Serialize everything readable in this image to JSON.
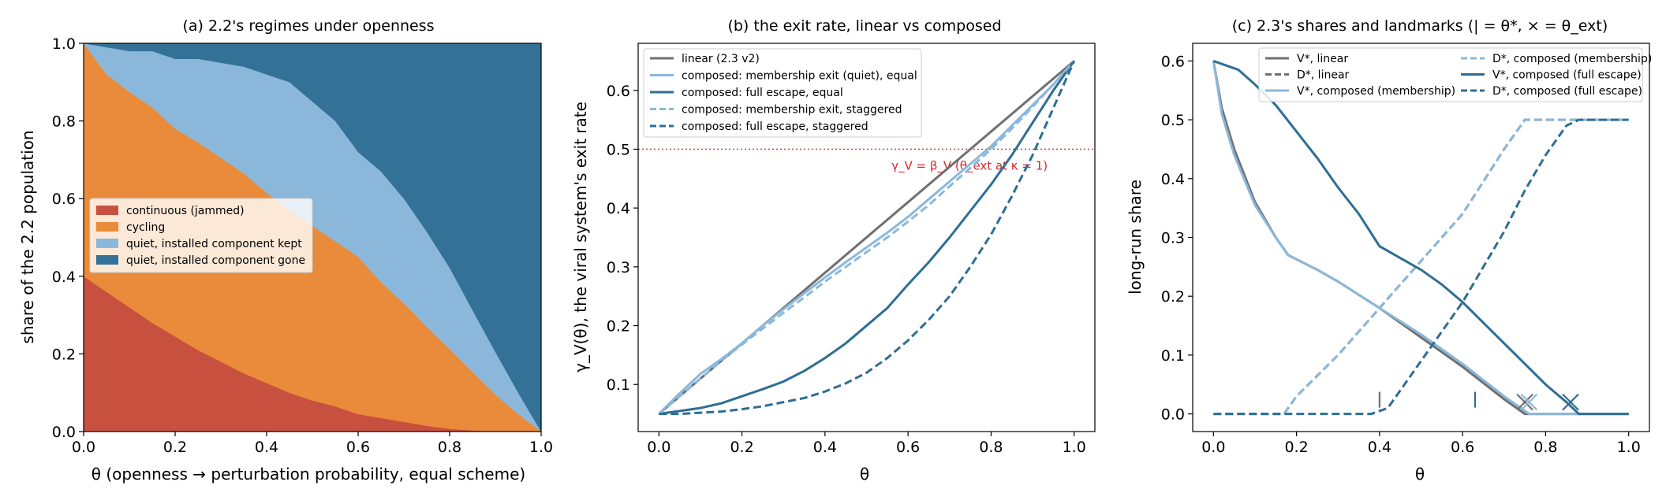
{
  "colors": {
    "red": "#c8503f",
    "orange": "#e98b3a",
    "light_blue": "#8bb8da",
    "dark_blue": "#347197",
    "teal": "#2e6e94",
    "gray": "#707070",
    "ref_red": "#d62728"
  },
  "chart_data": [
    {
      "type": "area",
      "title": "(a) 2.2's regimes under openness",
      "xlabel": "θ (openness → perturbation probability, equal scheme)",
      "ylabel": "share of the 2.2 population",
      "xlim": [
        0.0,
        1.0
      ],
      "ylim": [
        0.0,
        1.0
      ],
      "x_ticks": [
        "0.0",
        "0.2",
        "0.4",
        "0.6",
        "0.8",
        "1.0"
      ],
      "y_ticks": [
        "0.0",
        "0.2",
        "0.4",
        "0.6",
        "0.8",
        "1.0"
      ],
      "legend_position": "center-left",
      "stacked": true,
      "x": [
        0.0,
        0.05,
        0.1,
        0.15,
        0.2,
        0.25,
        0.3,
        0.35,
        0.4,
        0.45,
        0.5,
        0.55,
        0.6,
        0.65,
        0.7,
        0.75,
        0.8,
        0.85,
        0.9,
        0.95,
        1.0
      ],
      "series": [
        {
          "name": "continuous (jammed)",
          "color": "#c8503f",
          "values": [
            0.4,
            0.36,
            0.32,
            0.28,
            0.245,
            0.21,
            0.18,
            0.15,
            0.125,
            0.1,
            0.08,
            0.065,
            0.045,
            0.035,
            0.025,
            0.015,
            0.007,
            0.003,
            0.0,
            0.0,
            0.0
          ]
        },
        {
          "name": "cycling",
          "color": "#e98b3a",
          "values": [
            0.6,
            0.56,
            0.555,
            0.555,
            0.535,
            0.535,
            0.525,
            0.515,
            0.49,
            0.47,
            0.45,
            0.425,
            0.405,
            0.35,
            0.305,
            0.255,
            0.205,
            0.15,
            0.095,
            0.045,
            0.0
          ]
        },
        {
          "name": "quiet, installed component kept",
          "color": "#8bb8da",
          "values": [
            0.0,
            0.07,
            0.105,
            0.145,
            0.18,
            0.215,
            0.245,
            0.275,
            0.305,
            0.33,
            0.32,
            0.31,
            0.27,
            0.285,
            0.27,
            0.245,
            0.21,
            0.16,
            0.11,
            0.055,
            0.0
          ]
        },
        {
          "name": "quiet, installed component gone",
          "color": "#347197",
          "values": [
            0.0,
            0.01,
            0.02,
            0.02,
            0.04,
            0.04,
            0.05,
            0.06,
            0.08,
            0.1,
            0.15,
            0.2,
            0.28,
            0.33,
            0.4,
            0.485,
            0.578,
            0.687,
            0.795,
            0.9,
            1.0
          ]
        }
      ]
    },
    {
      "type": "line",
      "title": "(b) the exit rate, linear vs composed",
      "xlabel": "θ",
      "ylabel": "γ_V(θ), the viral system's exit rate",
      "xlim": [
        -0.05,
        1.05
      ],
      "ylim": [
        0.02,
        0.68
      ],
      "x_ticks": [
        "0.0",
        "0.2",
        "0.4",
        "0.6",
        "0.8",
        "1.0"
      ],
      "y_ticks": [
        "0.1",
        "0.2",
        "0.3",
        "0.4",
        "0.5",
        "0.6"
      ],
      "legend_position": "upper-left",
      "reference_line": {
        "y": 0.5,
        "label": "γ_V = β_V  (θ_ext at κ = 1)"
      },
      "series": [
        {
          "name": "linear (2.3 v2)",
          "color": "#707070",
          "dash": "solid",
          "x": [
            0.0,
            1.0
          ],
          "values": [
            0.05,
            0.65
          ]
        },
        {
          "name": "composed: membership exit (quiet), equal",
          "color": "#8bb8da",
          "dash": "solid",
          "x": [
            0.0,
            0.05,
            0.1,
            0.15,
            0.2,
            0.25,
            0.3,
            0.35,
            0.4,
            0.45,
            0.5,
            0.55,
            0.6,
            0.65,
            0.7,
            0.75,
            0.8,
            0.85,
            0.9,
            0.95,
            1.0
          ],
          "values": [
            0.05,
            0.085,
            0.118,
            0.143,
            0.17,
            0.2,
            0.228,
            0.255,
            0.282,
            0.308,
            0.333,
            0.358,
            0.385,
            0.415,
            0.445,
            0.475,
            0.505,
            0.54,
            0.575,
            0.61,
            0.65
          ]
        },
        {
          "name": "composed: full escape, equal",
          "color": "#2e6e94",
          "dash": "solid",
          "x": [
            0.0,
            0.05,
            0.1,
            0.15,
            0.2,
            0.25,
            0.3,
            0.35,
            0.4,
            0.45,
            0.5,
            0.55,
            0.6,
            0.65,
            0.7,
            0.75,
            0.8,
            0.85,
            0.9,
            0.95,
            1.0
          ],
          "values": [
            0.05,
            0.055,
            0.06,
            0.068,
            0.08,
            0.092,
            0.105,
            0.123,
            0.145,
            0.17,
            0.2,
            0.23,
            0.27,
            0.308,
            0.35,
            0.395,
            0.44,
            0.49,
            0.545,
            0.6,
            0.65
          ]
        },
        {
          "name": "composed: membership exit, staggered",
          "color": "#8bb8da",
          "dash": "dashed",
          "x": [
            0.0,
            0.05,
            0.1,
            0.15,
            0.2,
            0.25,
            0.3,
            0.35,
            0.4,
            0.45,
            0.5,
            0.55,
            0.6,
            0.65,
            0.7,
            0.75,
            0.8,
            0.85,
            0.9,
            0.95,
            1.0
          ],
          "values": [
            0.05,
            0.08,
            0.11,
            0.14,
            0.168,
            0.195,
            0.222,
            0.248,
            0.275,
            0.3,
            0.325,
            0.35,
            0.377,
            0.405,
            0.437,
            0.468,
            0.5,
            0.535,
            0.572,
            0.61,
            0.65
          ]
        },
        {
          "name": "composed: full escape, staggered",
          "color": "#2e6e94",
          "dash": "dashed",
          "x": [
            0.0,
            0.05,
            0.1,
            0.15,
            0.2,
            0.25,
            0.3,
            0.35,
            0.4,
            0.45,
            0.5,
            0.55,
            0.6,
            0.65,
            0.7,
            0.75,
            0.8,
            0.85,
            0.9,
            0.95,
            1.0
          ],
          "values": [
            0.05,
            0.05,
            0.052,
            0.054,
            0.058,
            0.063,
            0.07,
            0.077,
            0.088,
            0.102,
            0.12,
            0.145,
            0.175,
            0.21,
            0.25,
            0.3,
            0.355,
            0.42,
            0.49,
            0.57,
            0.65
          ]
        }
      ]
    },
    {
      "type": "line",
      "title": "(c) 2.3's shares and landmarks (| = θ*, × = θ_ext)",
      "xlabel": "θ",
      "ylabel": "long-run share",
      "xlim": [
        -0.05,
        1.05
      ],
      "ylim": [
        -0.03,
        0.63
      ],
      "x_ticks": [
        "0.0",
        "0.2",
        "0.4",
        "0.6",
        "0.8",
        "1.0"
      ],
      "y_ticks": [
        "0.0",
        "0.1",
        "0.2",
        "0.3",
        "0.4",
        "0.5",
        "0.6"
      ],
      "legend_position": "upper-center",
      "series": [
        {
          "name": "V*, linear",
          "color": "#707070",
          "dash": "solid",
          "x": [
            0.0,
            0.02,
            0.05,
            0.1,
            0.15,
            0.18,
            0.25,
            0.3,
            0.4,
            0.5,
            0.6,
            0.7,
            0.75,
            0.8,
            1.0
          ],
          "values": [
            0.6,
            0.52,
            0.45,
            0.36,
            0.3,
            0.27,
            0.245,
            0.225,
            0.18,
            0.13,
            0.08,
            0.025,
            0.0,
            0.0,
            0.0
          ]
        },
        {
          "name": "D*, linear",
          "color": "#707070",
          "dash": "dashed",
          "x": [
            0.0,
            0.17,
            0.2,
            0.3,
            0.4,
            0.5,
            0.6,
            0.7,
            0.75,
            1.0
          ],
          "values": [
            0.0,
            0.0,
            0.03,
            0.1,
            0.18,
            0.26,
            0.34,
            0.45,
            0.5,
            0.5
          ]
        },
        {
          "name": "V*, composed (membership)",
          "color": "#8bb8da",
          "dash": "solid",
          "x": [
            0.0,
            0.02,
            0.05,
            0.1,
            0.15,
            0.18,
            0.25,
            0.3,
            0.4,
            0.5,
            0.6,
            0.7,
            0.76,
            0.8,
            1.0
          ],
          "values": [
            0.6,
            0.51,
            0.44,
            0.355,
            0.3,
            0.27,
            0.245,
            0.225,
            0.18,
            0.135,
            0.085,
            0.03,
            0.0,
            0.0,
            0.0
          ]
        },
        {
          "name": "D*, composed (membership)",
          "color": "#8bb8da",
          "dash": "dashed",
          "x": [
            0.0,
            0.17,
            0.2,
            0.3,
            0.4,
            0.5,
            0.6,
            0.7,
            0.75,
            1.0
          ],
          "values": [
            0.0,
            0.0,
            0.03,
            0.1,
            0.18,
            0.26,
            0.34,
            0.45,
            0.5,
            0.5
          ]
        },
        {
          "name": "V*, composed (full escape)",
          "color": "#2e6e94",
          "dash": "solid",
          "x": [
            0.0,
            0.06,
            0.1,
            0.15,
            0.2,
            0.25,
            0.3,
            0.35,
            0.4,
            0.45,
            0.5,
            0.55,
            0.6,
            0.65,
            0.7,
            0.75,
            0.8,
            0.85,
            0.88,
            1.0
          ],
          "values": [
            0.6,
            0.585,
            0.56,
            0.525,
            0.48,
            0.435,
            0.385,
            0.34,
            0.285,
            0.265,
            0.245,
            0.22,
            0.19,
            0.155,
            0.12,
            0.085,
            0.05,
            0.02,
            0.0,
            0.0
          ]
        },
        {
          "name": "D*, composed (full escape)",
          "color": "#2e6e94",
          "dash": "dashed",
          "x": [
            0.0,
            0.38,
            0.42,
            0.45,
            0.5,
            0.55,
            0.6,
            0.65,
            0.7,
            0.75,
            0.8,
            0.85,
            0.88,
            1.0
          ],
          "values": [
            0.0,
            0.0,
            0.01,
            0.04,
            0.09,
            0.14,
            0.19,
            0.25,
            0.31,
            0.38,
            0.44,
            0.49,
            0.5,
            0.5
          ]
        }
      ],
      "markers": [
        {
          "kind": "theta_star",
          "symbol": "|",
          "x": 0.4,
          "color": "#707070"
        },
        {
          "kind": "theta_star",
          "symbol": "|",
          "x": 0.63,
          "color": "#2e6e94"
        },
        {
          "kind": "theta_ext",
          "symbol": "×",
          "x": 0.75,
          "color": "#707070"
        },
        {
          "kind": "theta_ext",
          "symbol": "×",
          "x": 0.76,
          "color": "#8bb8da"
        },
        {
          "kind": "theta_ext",
          "symbol": "×",
          "x": 0.86,
          "color": "#2e6e94"
        }
      ]
    }
  ]
}
